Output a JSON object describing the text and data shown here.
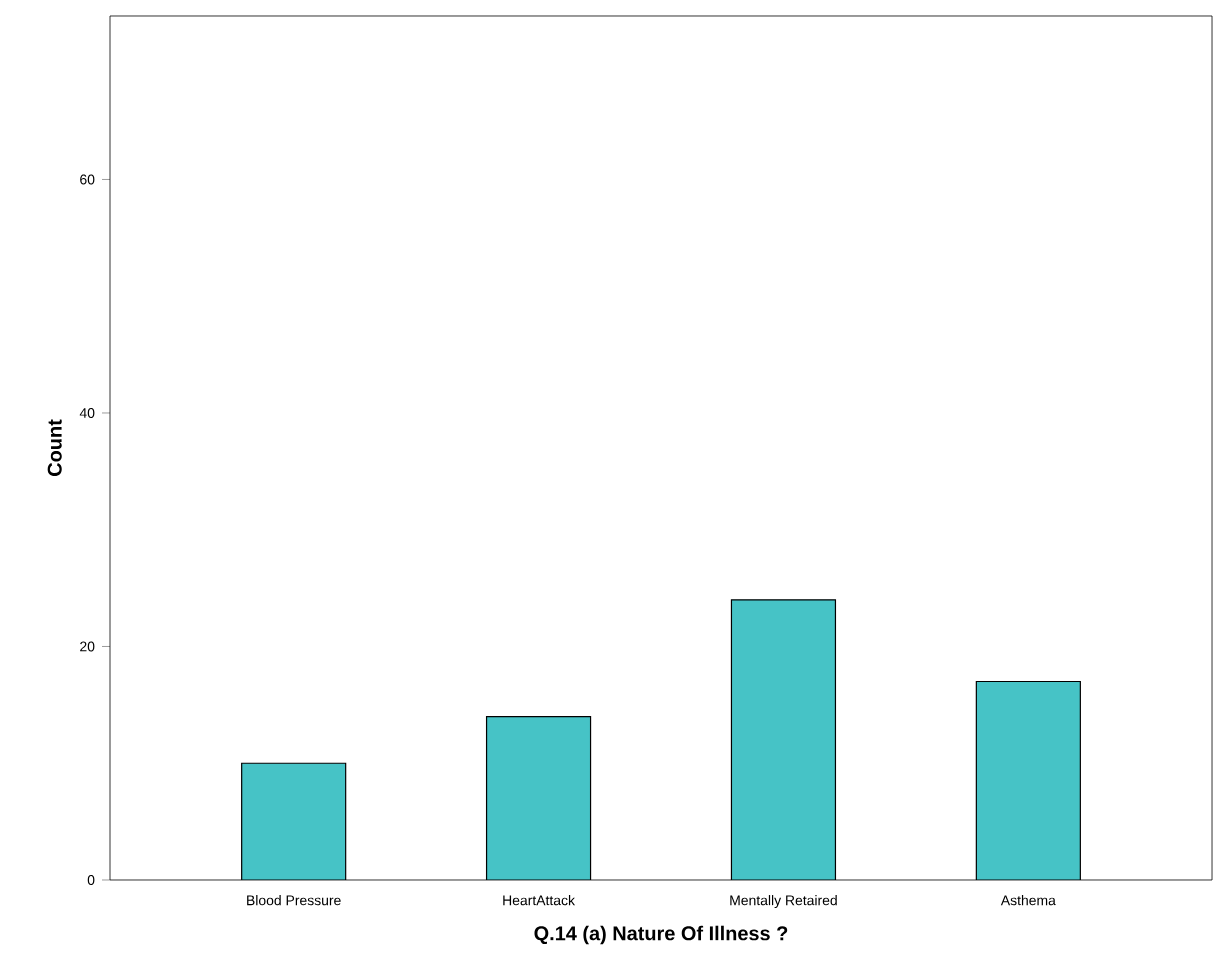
{
  "chart_data": {
    "type": "bar",
    "xlabel": "Q.14 (a) Nature Of Illness ?",
    "ylabel": "Count",
    "categories": [
      "Blood Pressure",
      "HeartAttack",
      "Mentally Retaired",
      "Asthema"
    ],
    "values": [
      10,
      14,
      24,
      17
    ],
    "color": "#46c3c6",
    "ylim": [
      0,
      74
    ],
    "yticks": [
      0,
      20,
      40,
      60
    ]
  }
}
